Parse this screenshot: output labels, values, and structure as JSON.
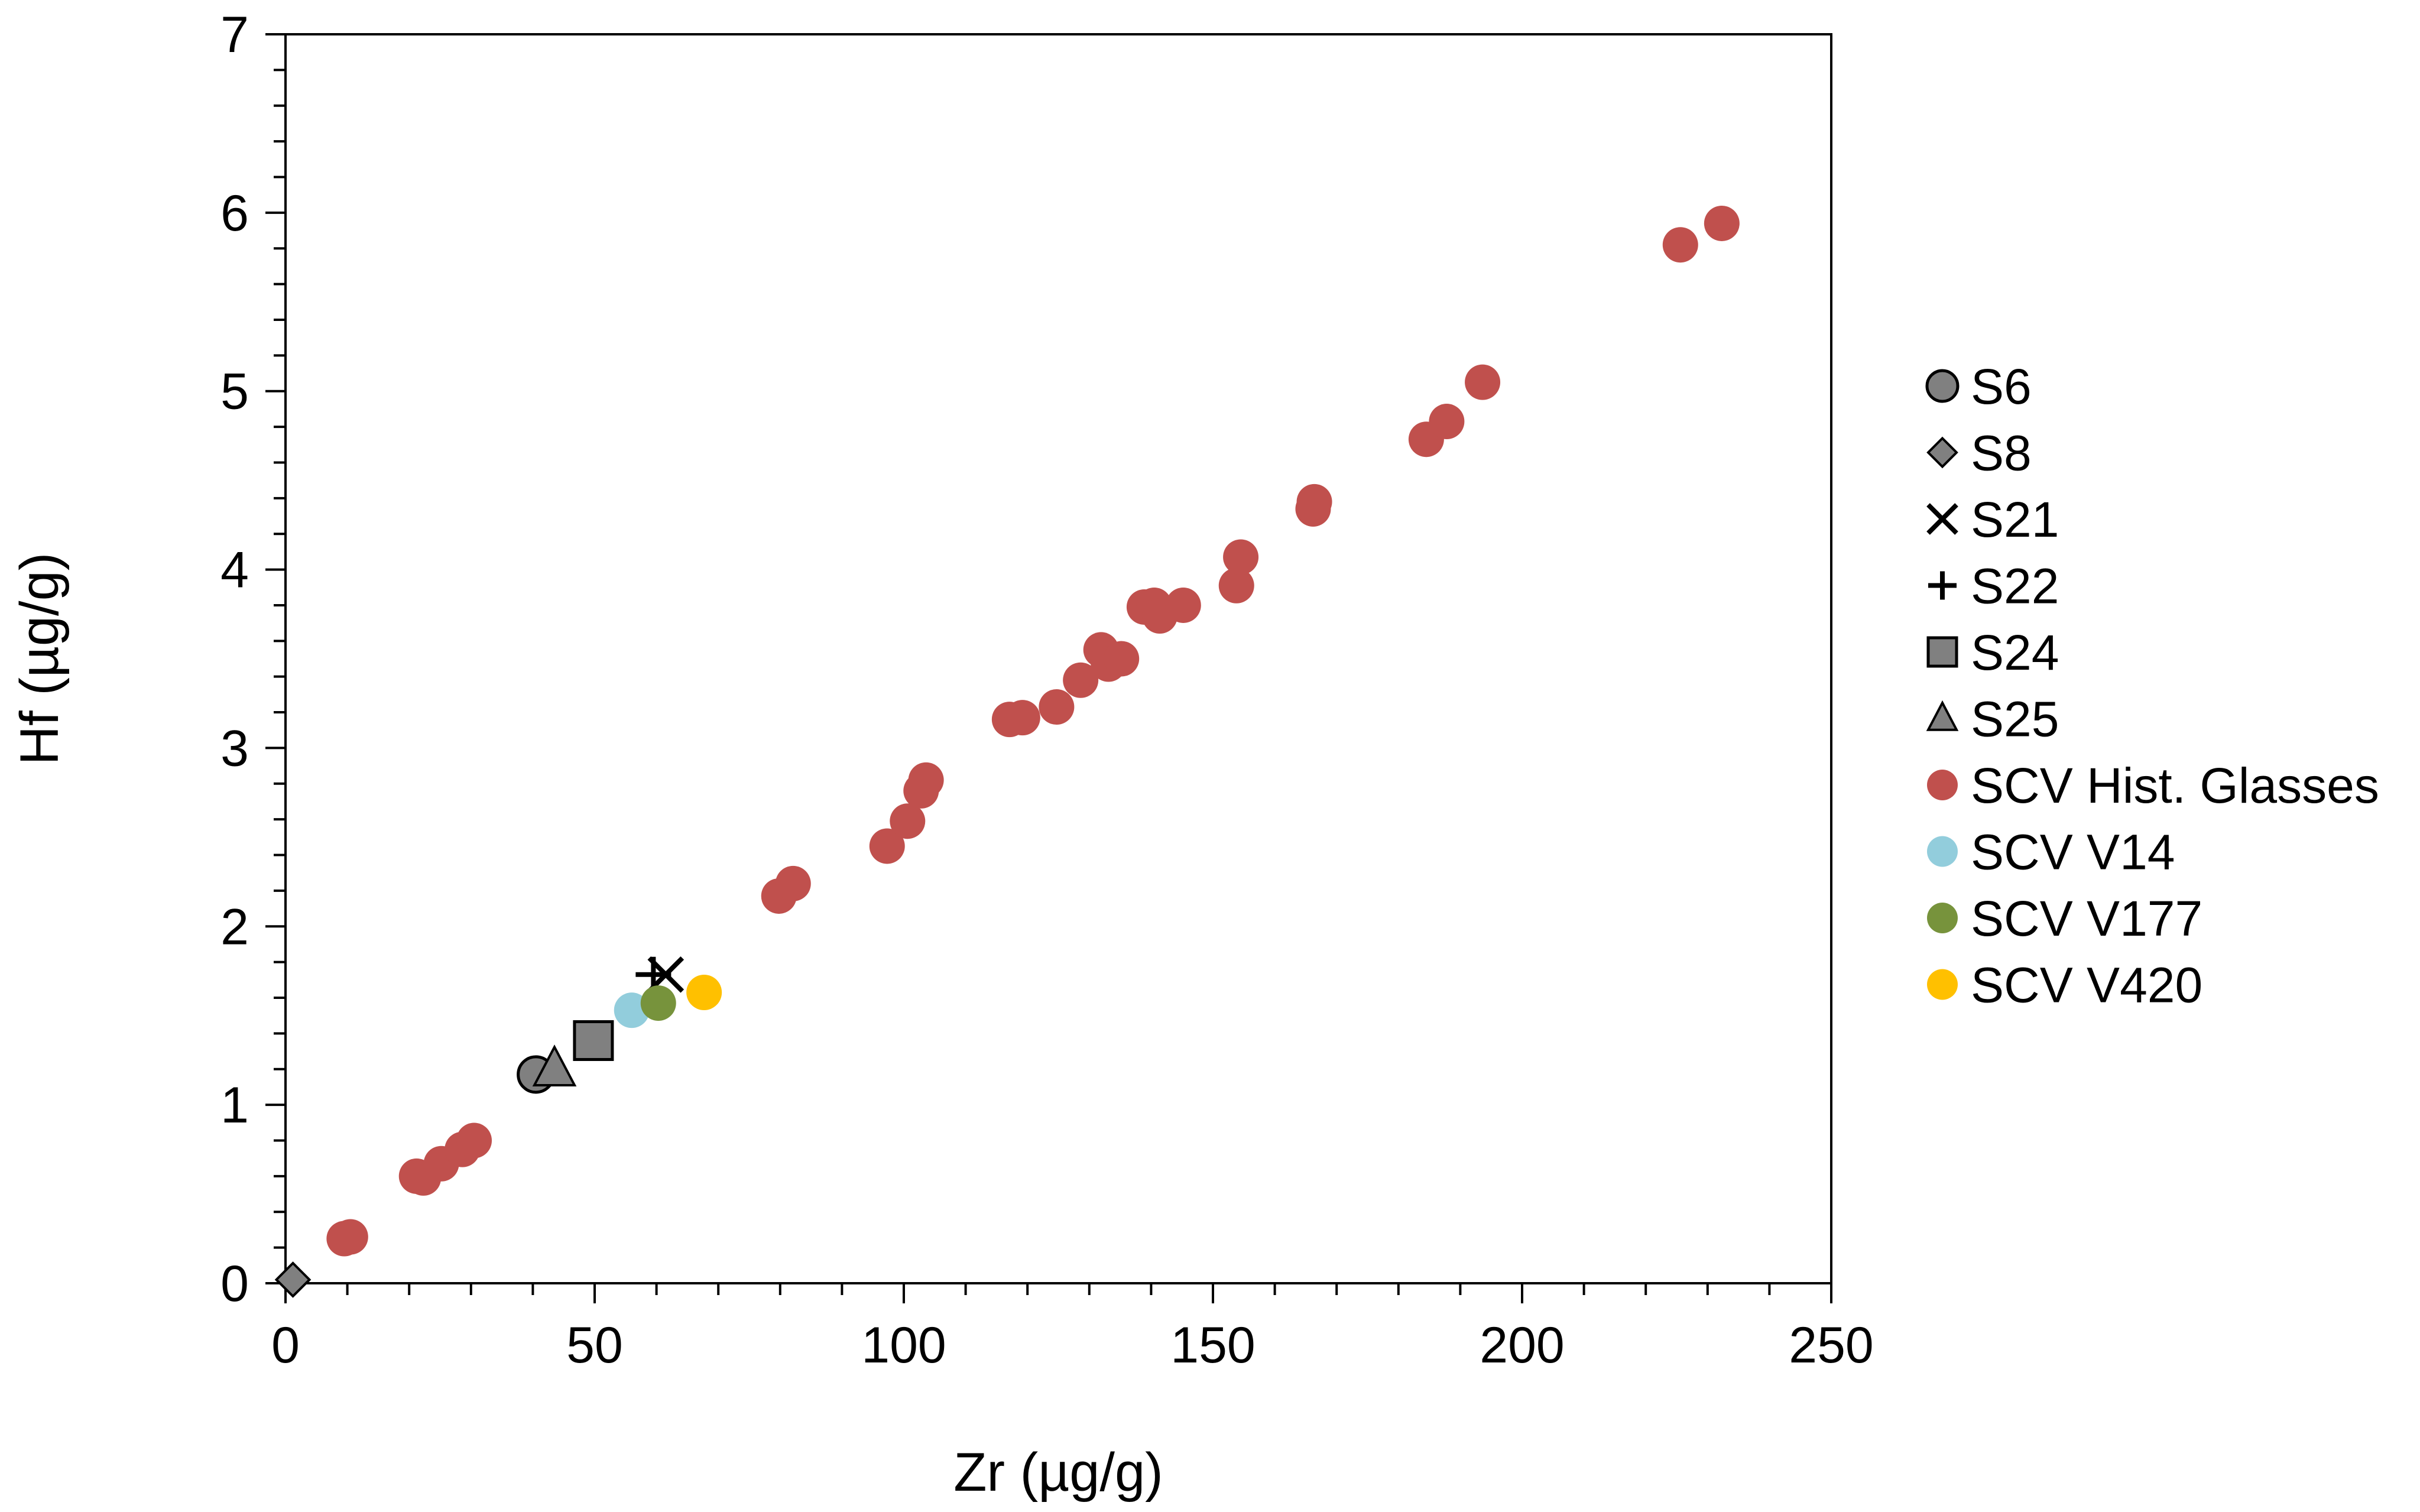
{
  "chart_data": {
    "type": "scatter",
    "title": "",
    "xlabel": "Zr (µg/g)",
    "ylabel": "Hf (µg/g)",
    "xlim": [
      0,
      250
    ],
    "ylim": [
      0,
      7
    ],
    "x_ticks": [
      0,
      50,
      100,
      150,
      200,
      250
    ],
    "y_ticks": [
      0,
      1,
      2,
      3,
      4,
      5,
      6,
      7
    ],
    "x_tick_labels": [
      "0",
      "50",
      "100",
      "150",
      "200",
      "250"
    ],
    "y_tick_labels": [
      "0",
      "1",
      "2",
      "3",
      "4",
      "5",
      "6",
      "7"
    ],
    "grid": false,
    "legend_position": "right",
    "series": [
      {
        "name": "S6",
        "marker": "circle",
        "color": "#808080",
        "points": [
          [
            40.5,
            1.17
          ]
        ]
      },
      {
        "name": "S8",
        "marker": "diamond",
        "color": "#808080",
        "points": [
          [
            1.2,
            0.02
          ]
        ]
      },
      {
        "name": "S21",
        "marker": "x",
        "color": "#000000",
        "points": [
          [
            61.5,
            1.73
          ]
        ]
      },
      {
        "name": "S22",
        "marker": "plus",
        "color": "#000000",
        "points": [
          [
            59.5,
            1.73
          ]
        ]
      },
      {
        "name": "S24",
        "marker": "square",
        "color": "#808080",
        "points": [
          [
            49.8,
            1.36
          ]
        ]
      },
      {
        "name": "S25",
        "marker": "triangle",
        "color": "#808080",
        "points": [
          [
            43.5,
            1.2
          ]
        ]
      },
      {
        "name": "SCV Hist. Glasses",
        "marker": "circle",
        "color": "#C0504D",
        "points": [
          [
            9.5,
            0.25
          ],
          [
            10.5,
            0.26
          ],
          [
            21.2,
            0.6
          ],
          [
            22.3,
            0.59
          ],
          [
            25.2,
            0.67
          ],
          [
            28.6,
            0.75
          ],
          [
            30.5,
            0.8
          ],
          [
            79.8,
            2.17
          ],
          [
            82.1,
            2.24
          ],
          [
            97.3,
            2.45
          ],
          [
            100.6,
            2.59
          ],
          [
            102.8,
            2.76
          ],
          [
            103.6,
            2.82
          ],
          [
            117.1,
            3.16
          ],
          [
            119.2,
            3.17
          ],
          [
            124.7,
            3.23
          ],
          [
            128.6,
            3.38
          ],
          [
            131.9,
            3.55
          ],
          [
            133.1,
            3.47
          ],
          [
            135.2,
            3.5
          ],
          [
            138.9,
            3.79
          ],
          [
            140.5,
            3.8
          ],
          [
            141.4,
            3.74
          ],
          [
            145.2,
            3.8
          ],
          [
            153.8,
            3.91
          ],
          [
            154.5,
            4.07
          ],
          [
            166.2,
            4.34
          ],
          [
            166.4,
            4.38
          ],
          [
            184.5,
            4.73
          ],
          [
            187.8,
            4.83
          ],
          [
            193.6,
            5.05
          ],
          [
            225.6,
            5.82
          ],
          [
            232.3,
            5.94
          ]
        ]
      },
      {
        "name": "SCV V14",
        "marker": "circle",
        "color": "#92CDDC",
        "points": [
          [
            56.0,
            1.53
          ]
        ]
      },
      {
        "name": "SCV V177",
        "marker": "circle",
        "color": "#77933C",
        "points": [
          [
            60.3,
            1.57
          ]
        ]
      },
      {
        "name": "SCV V420",
        "marker": "circle",
        "color": "#FFC000",
        "points": [
          [
            67.7,
            1.63
          ]
        ]
      }
    ]
  }
}
